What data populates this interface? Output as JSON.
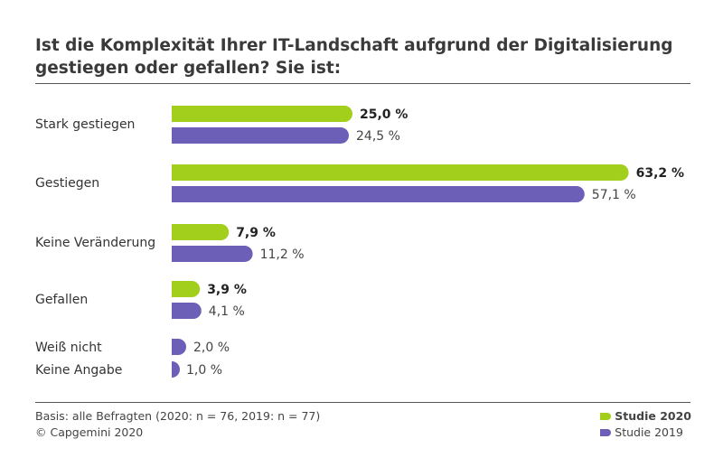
{
  "title": {
    "line1": "Ist die Komplexität Ihrer IT-Landschaft aufgrund der Digitalisierung",
    "line2": "gestiegen oder gefallen? Sie ist:"
  },
  "footer": {
    "basis": "Basis: alle Befragten (2020: n = 76, 2019: n = 77)",
    "copyright": "© Capgemini 2020"
  },
  "legend": {
    "s2020": "Studie 2020",
    "s2019": "Studie 2019"
  },
  "colors": {
    "s2020": "#a2cf1c",
    "s2019": "#6c5fb8",
    "text": "#333333"
  },
  "chart_data": {
    "type": "bar",
    "orientation": "horizontal",
    "categories": [
      "Stark gestiegen",
      "Gestiegen",
      "Keine Veränderung",
      "Gefallen",
      "Weiß nicht",
      "Keine Angabe"
    ],
    "series": [
      {
        "name": "Studie 2020",
        "values": [
          25.0,
          63.2,
          7.9,
          3.9,
          null,
          null
        ],
        "labels": [
          "25,0 %",
          "63,2 %",
          "7,9 %",
          "3,9 %",
          null,
          null
        ]
      },
      {
        "name": "Studie 2019",
        "values": [
          24.5,
          57.1,
          11.2,
          4.1,
          2.0,
          1.0
        ],
        "labels": [
          "24,5 %",
          "57,1 %",
          "11,2 %",
          "4,1 %",
          "2,0 %",
          "1,0 %"
        ]
      }
    ],
    "unit": "%",
    "xlim": [
      0,
      100
    ],
    "legend_position": "bottom-right",
    "grid": false
  }
}
